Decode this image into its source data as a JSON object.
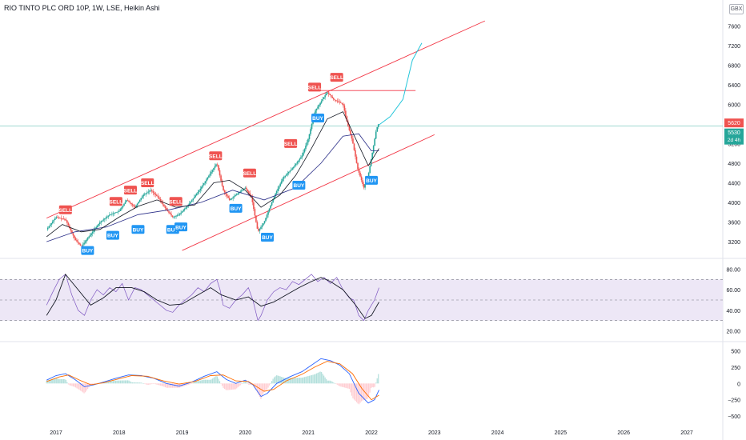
{
  "header": {
    "title": "RIO TINTO PLC ORD 10P, 1W, LSE, Heikin Ashi",
    "currency": "GBX"
  },
  "colors": {
    "up": "#26a69a",
    "down": "#ef5350",
    "channel": "#f23645",
    "ma_fast": "#131722",
    "ma_slow": "#2a2e88",
    "projection": "#26c6da",
    "rsi_line": "#7e57c2",
    "rsi_band": "#ede7f6",
    "macd_line": "#2962ff",
    "signal_line": "#ff6d00",
    "hist_up": "#b2dfdb",
    "hist_down": "#ffcdd2",
    "buy": "#2196f3",
    "sell": "#ef5350"
  },
  "price_badges": {
    "upper": "5620",
    "lower": "5530",
    "countdown": "2d 4h"
  },
  "chart_data": [
    {
      "type": "candlestick",
      "title": "RIO TINTO PLC ORD 10P, 1W, LSE, Heikin Ashi",
      "x_ticks": [
        2017,
        2018,
        2019,
        2020,
        2021,
        2022,
        2023,
        2024,
        2025,
        2026,
        2027
      ],
      "x_tick_labels": [
        "2017",
        "2018",
        "2019",
        "2020",
        "2021",
        "2022",
        "2023",
        "2024",
        "2025",
        "2026",
        "2027"
      ],
      "y_ticks": [
        3200,
        3600,
        4000,
        4400,
        4800,
        5200,
        5600,
        6000,
        6400,
        6800,
        7200,
        7600
      ],
      "y_tick_labels": [
        "3200",
        "3600",
        "4000",
        "4400",
        "4800",
        "5200",
        "5600",
        "6000",
        "6400",
        "6800",
        "7200",
        "7600"
      ],
      "ylim": [
        2940,
        7800
      ],
      "price_path": [
        [
          2016.85,
          3450
        ],
        [
          2017.0,
          3700
        ],
        [
          2017.15,
          3650
        ],
        [
          2017.3,
          3250
        ],
        [
          2017.4,
          3100
        ],
        [
          2017.55,
          3350
        ],
        [
          2017.7,
          3600
        ],
        [
          2017.85,
          3750
        ],
        [
          2018.0,
          3820
        ],
        [
          2018.12,
          4050
        ],
        [
          2018.25,
          3900
        ],
        [
          2018.38,
          4150
        ],
        [
          2018.5,
          4250
        ],
        [
          2018.62,
          4100
        ],
        [
          2018.75,
          3850
        ],
        [
          2018.85,
          3700
        ],
        [
          2018.95,
          3750
        ],
        [
          2019.1,
          3950
        ],
        [
          2019.3,
          4300
        ],
        [
          2019.45,
          4600
        ],
        [
          2019.55,
          4800
        ],
        [
          2019.65,
          4250
        ],
        [
          2019.75,
          4050
        ],
        [
          2019.9,
          4200
        ],
        [
          2020.0,
          4300
        ],
        [
          2020.1,
          4100
        ],
        [
          2020.2,
          3400
        ],
        [
          2020.3,
          3600
        ],
        [
          2020.45,
          4100
        ],
        [
          2020.6,
          4500
        ],
        [
          2020.75,
          4700
        ],
        [
          2020.9,
          4950
        ],
        [
          2021.0,
          5300
        ],
        [
          2021.1,
          5850
        ],
        [
          2021.2,
          6050
        ],
        [
          2021.3,
          6250
        ],
        [
          2021.4,
          6100
        ],
        [
          2021.55,
          6000
        ],
        [
          2021.62,
          5600
        ],
        [
          2021.7,
          5250
        ],
        [
          2021.78,
          4700
        ],
        [
          2021.88,
          4300
        ],
        [
          2021.95,
          4550
        ],
        [
          2022.02,
          5050
        ],
        [
          2022.08,
          5500
        ],
        [
          2022.12,
          5620
        ]
      ],
      "ma_fast": [
        [
          2016.85,
          3300
        ],
        [
          2017.1,
          3550
        ],
        [
          2017.4,
          3400
        ],
        [
          2017.7,
          3450
        ],
        [
          2018.0,
          3700
        ],
        [
          2018.3,
          3920
        ],
        [
          2018.6,
          4050
        ],
        [
          2018.9,
          3900
        ],
        [
          2019.2,
          3950
        ],
        [
          2019.5,
          4400
        ],
        [
          2019.75,
          4450
        ],
        [
          2020.0,
          4250
        ],
        [
          2020.25,
          3900
        ],
        [
          2020.55,
          4150
        ],
        [
          2020.8,
          4550
        ],
        [
          2021.05,
          5100
        ],
        [
          2021.3,
          5700
        ],
        [
          2021.55,
          5850
        ],
        [
          2021.75,
          5300
        ],
        [
          2021.95,
          4750
        ],
        [
          2022.12,
          5100
        ]
      ],
      "ma_slow": [
        [
          2016.85,
          3200
        ],
        [
          2017.3,
          3400
        ],
        [
          2017.8,
          3500
        ],
        [
          2018.3,
          3750
        ],
        [
          2018.8,
          3850
        ],
        [
          2019.3,
          4000
        ],
        [
          2019.8,
          4250
        ],
        [
          2020.3,
          4050
        ],
        [
          2020.8,
          4300
        ],
        [
          2021.2,
          4800
        ],
        [
          2021.55,
          5350
        ],
        [
          2021.8,
          5400
        ],
        [
          2022.0,
          5050
        ],
        [
          2022.12,
          5050
        ]
      ],
      "projection": [
        [
          2022.12,
          5580
        ],
        [
          2022.3,
          5750
        ],
        [
          2022.5,
          6100
        ],
        [
          2022.65,
          6900
        ],
        [
          2022.8,
          7250
        ]
      ],
      "channel_upper": [
        [
          2016.85,
          3680
        ],
        [
          2023.8,
          7700
        ]
      ],
      "channel_lower": [
        [
          2019.0,
          3020
        ],
        [
          2023.0,
          5380
        ]
      ],
      "resistance": [
        [
          2021.0,
          6280
        ],
        [
          2022.7,
          6280
        ]
      ],
      "signals": [
        {
          "label": "SELL",
          "x": 2017.15,
          "y": 3850
        },
        {
          "label": "BUY",
          "x": 2017.5,
          "y": 3020
        },
        {
          "label": "BUY",
          "x": 2017.9,
          "y": 3330
        },
        {
          "label": "SELL",
          "x": 2017.95,
          "y": 4020
        },
        {
          "label": "SELL",
          "x": 2018.18,
          "y": 4250
        },
        {
          "label": "BUY",
          "x": 2018.3,
          "y": 3450
        },
        {
          "label": "SELL",
          "x": 2018.45,
          "y": 4400
        },
        {
          "label": "BUY",
          "x": 2018.85,
          "y": 3450
        },
        {
          "label": "SELL",
          "x": 2018.9,
          "y": 4020
        },
        {
          "label": "BUY",
          "x": 2018.98,
          "y": 3500
        },
        {
          "label": "SELL",
          "x": 2019.53,
          "y": 4950
        },
        {
          "label": "BUY",
          "x": 2019.85,
          "y": 3880
        },
        {
          "label": "SELL",
          "x": 2020.07,
          "y": 4600
        },
        {
          "label": "BUY",
          "x": 2020.35,
          "y": 3290
        },
        {
          "label": "SELL",
          "x": 2020.72,
          "y": 5200
        },
        {
          "label": "BUY",
          "x": 2020.85,
          "y": 4350
        },
        {
          "label": "SELL",
          "x": 2021.1,
          "y": 6350
        },
        {
          "label": "BUY",
          "x": 2021.15,
          "y": 5720
        },
        {
          "label": "SELL",
          "x": 2021.45,
          "y": 6550
        },
        {
          "label": "BUY",
          "x": 2022.0,
          "y": 4450
        }
      ]
    },
    {
      "type": "line",
      "indicator": "RSI",
      "y_ticks": [
        20,
        40,
        60,
        80
      ],
      "y_tick_labels": [
        "20.00",
        "40.00",
        "60.00",
        "80.00"
      ],
      "ylim": [
        15,
        85
      ],
      "band": [
        30,
        70
      ],
      "midline": 50,
      "rsi": [
        [
          2016.85,
          45
        ],
        [
          2016.95,
          58
        ],
        [
          2017.05,
          70
        ],
        [
          2017.15,
          75
        ],
        [
          2017.25,
          55
        ],
        [
          2017.35,
          40
        ],
        [
          2017.45,
          35
        ],
        [
          2017.55,
          50
        ],
        [
          2017.65,
          60
        ],
        [
          2017.75,
          55
        ],
        [
          2017.85,
          62
        ],
        [
          2017.95,
          58
        ],
        [
          2018.05,
          66
        ],
        [
          2018.15,
          50
        ],
        [
          2018.25,
          62
        ],
        [
          2018.35,
          60
        ],
        [
          2018.45,
          55
        ],
        [
          2018.55,
          50
        ],
        [
          2018.65,
          45
        ],
        [
          2018.75,
          40
        ],
        [
          2018.85,
          38
        ],
        [
          2018.95,
          45
        ],
        [
          2019.05,
          50
        ],
        [
          2019.15,
          55
        ],
        [
          2019.25,
          62
        ],
        [
          2019.35,
          58
        ],
        [
          2019.45,
          66
        ],
        [
          2019.55,
          70
        ],
        [
          2019.6,
          60
        ],
        [
          2019.65,
          45
        ],
        [
          2019.75,
          42
        ],
        [
          2019.85,
          50
        ],
        [
          2019.95,
          55
        ],
        [
          2020.05,
          62
        ],
        [
          2020.12,
          50
        ],
        [
          2020.2,
          30
        ],
        [
          2020.25,
          35
        ],
        [
          2020.35,
          50
        ],
        [
          2020.45,
          58
        ],
        [
          2020.55,
          62
        ],
        [
          2020.65,
          60
        ],
        [
          2020.75,
          68
        ],
        [
          2020.85,
          65
        ],
        [
          2020.95,
          70
        ],
        [
          2021.05,
          75
        ],
        [
          2021.15,
          68
        ],
        [
          2021.25,
          72
        ],
        [
          2021.35,
          66
        ],
        [
          2021.45,
          72
        ],
        [
          2021.55,
          60
        ],
        [
          2021.65,
          52
        ],
        [
          2021.72,
          50
        ],
        [
          2021.8,
          35
        ],
        [
          2021.88,
          30
        ],
        [
          2021.95,
          40
        ],
        [
          2022.05,
          50
        ],
        [
          2022.12,
          62
        ]
      ],
      "rsi_ma": [
        [
          2016.85,
          35
        ],
        [
          2017.0,
          50
        ],
        [
          2017.15,
          75
        ],
        [
          2017.35,
          60
        ],
        [
          2017.55,
          45
        ],
        [
          2017.75,
          52
        ],
        [
          2017.95,
          62
        ],
        [
          2018.2,
          62
        ],
        [
          2018.4,
          58
        ],
        [
          2018.6,
          50
        ],
        [
          2018.8,
          45
        ],
        [
          2019.0,
          46
        ],
        [
          2019.25,
          55
        ],
        [
          2019.45,
          62
        ],
        [
          2019.62,
          55
        ],
        [
          2019.85,
          50
        ],
        [
          2020.05,
          53
        ],
        [
          2020.25,
          44
        ],
        [
          2020.45,
          48
        ],
        [
          2020.65,
          55
        ],
        [
          2020.85,
          62
        ],
        [
          2021.05,
          68
        ],
        [
          2021.2,
          72
        ],
        [
          2021.35,
          68
        ],
        [
          2021.55,
          60
        ],
        [
          2021.75,
          45
        ],
        [
          2021.9,
          32
        ],
        [
          2022.0,
          35
        ],
        [
          2022.12,
          48
        ]
      ]
    },
    {
      "type": "line",
      "indicator": "MACD",
      "y_ticks": [
        -500,
        -250,
        0,
        250,
        500
      ],
      "y_tick_labels": [
        "−500",
        "−250",
        "0",
        "250",
        "500"
      ],
      "ylim": [
        -560,
        580
      ],
      "macd": [
        [
          2016.85,
          50
        ],
        [
          2017.0,
          120
        ],
        [
          2017.15,
          150
        ],
        [
          2017.3,
          60
        ],
        [
          2017.45,
          -50
        ],
        [
          2017.6,
          -20
        ],
        [
          2017.75,
          20
        ],
        [
          2017.95,
          80
        ],
        [
          2018.15,
          130
        ],
        [
          2018.35,
          120
        ],
        [
          2018.55,
          80
        ],
        [
          2018.75,
          0
        ],
        [
          2018.95,
          -40
        ],
        [
          2019.15,
          20
        ],
        [
          2019.35,
          110
        ],
        [
          2019.55,
          180
        ],
        [
          2019.7,
          60
        ],
        [
          2019.85,
          0
        ],
        [
          2020.0,
          50
        ],
        [
          2020.12,
          -20
        ],
        [
          2020.25,
          -200
        ],
        [
          2020.35,
          -150
        ],
        [
          2020.5,
          0
        ],
        [
          2020.7,
          100
        ],
        [
          2020.9,
          180
        ],
        [
          2021.05,
          280
        ],
        [
          2021.2,
          380
        ],
        [
          2021.35,
          350
        ],
        [
          2021.5,
          280
        ],
        [
          2021.65,
          150
        ],
        [
          2021.8,
          -150
        ],
        [
          2021.95,
          -300
        ],
        [
          2022.05,
          -250
        ],
        [
          2022.12,
          -100
        ]
      ],
      "signal": [
        [
          2016.85,
          30
        ],
        [
          2017.05,
          100
        ],
        [
          2017.2,
          130
        ],
        [
          2017.4,
          40
        ],
        [
          2017.55,
          -20
        ],
        [
          2017.75,
          10
        ],
        [
          2017.95,
          60
        ],
        [
          2018.2,
          120
        ],
        [
          2018.45,
          110
        ],
        [
          2018.7,
          40
        ],
        [
          2018.95,
          -10
        ],
        [
          2019.2,
          30
        ],
        [
          2019.45,
          120
        ],
        [
          2019.65,
          130
        ],
        [
          2019.85,
          40
        ],
        [
          2020.05,
          30
        ],
        [
          2020.3,
          -120
        ],
        [
          2020.45,
          -90
        ],
        [
          2020.65,
          40
        ],
        [
          2020.9,
          140
        ],
        [
          2021.1,
          250
        ],
        [
          2021.3,
          340
        ],
        [
          2021.5,
          300
        ],
        [
          2021.7,
          150
        ],
        [
          2021.85,
          -80
        ],
        [
          2022.0,
          -250
        ],
        [
          2022.12,
          -180
        ]
      ]
    }
  ]
}
